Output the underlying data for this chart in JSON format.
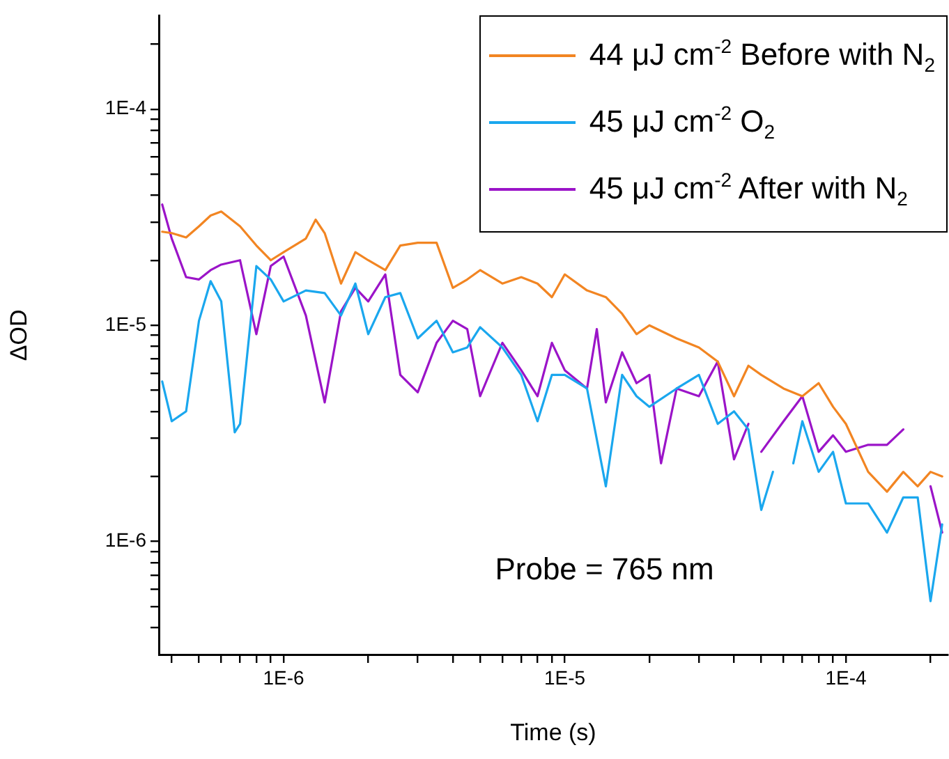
{
  "chart_data": {
    "type": "line",
    "xlabel": "Time (s)",
    "ylabel": "ΔOD",
    "log": "xy",
    "grid": false,
    "legend": "top right",
    "marker": "none",
    "line_style": "solid",
    "xlim": [
      3.6e-07,
      0.00023
    ],
    "ylim": [
      3e-07,
      0.00027
    ],
    "xticks": [
      {
        "value": 4e-07,
        "label": null
      },
      {
        "value": 5e-07,
        "label": null
      },
      {
        "value": 6e-07,
        "label": null
      },
      {
        "value": 7e-07,
        "label": null
      },
      {
        "value": 8e-07,
        "label": null
      },
      {
        "value": 9e-07,
        "label": null
      },
      {
        "value": 1e-06,
        "label": "1E-6"
      },
      {
        "value": 2e-06,
        "label": null
      },
      {
        "value": 3e-06,
        "label": null
      },
      {
        "value": 4e-06,
        "label": null
      },
      {
        "value": 5e-06,
        "label": null
      },
      {
        "value": 6e-06,
        "label": null
      },
      {
        "value": 7e-06,
        "label": null
      },
      {
        "value": 8e-06,
        "label": null
      },
      {
        "value": 9e-06,
        "label": null
      },
      {
        "value": 1e-05,
        "label": "1E-5"
      },
      {
        "value": 2e-05,
        "label": null
      },
      {
        "value": 3e-05,
        "label": null
      },
      {
        "value": 4e-05,
        "label": null
      },
      {
        "value": 5e-05,
        "label": null
      },
      {
        "value": 6e-05,
        "label": null
      },
      {
        "value": 7e-05,
        "label": null
      },
      {
        "value": 8e-05,
        "label": null
      },
      {
        "value": 9e-05,
        "label": null
      },
      {
        "value": 0.0001,
        "label": "1E-4"
      },
      {
        "value": 0.0002,
        "label": null
      }
    ],
    "yticks": [
      {
        "value": 4e-07,
        "label": null
      },
      {
        "value": 5e-07,
        "label": null
      },
      {
        "value": 6e-07,
        "label": null
      },
      {
        "value": 7e-07,
        "label": null
      },
      {
        "value": 8e-07,
        "label": null
      },
      {
        "value": 9e-07,
        "label": null
      },
      {
        "value": 1e-06,
        "label": "1E-6"
      },
      {
        "value": 2e-06,
        "label": null
      },
      {
        "value": 3e-06,
        "label": null
      },
      {
        "value": 4e-06,
        "label": null
      },
      {
        "value": 5e-06,
        "label": null
      },
      {
        "value": 6e-06,
        "label": null
      },
      {
        "value": 7e-06,
        "label": null
      },
      {
        "value": 8e-06,
        "label": null
      },
      {
        "value": 9e-06,
        "label": null
      },
      {
        "value": 1e-05,
        "label": "1E-5"
      },
      {
        "value": 2e-05,
        "label": null
      },
      {
        "value": 3e-05,
        "label": null
      },
      {
        "value": 4e-05,
        "label": null
      },
      {
        "value": 5e-05,
        "label": null
      },
      {
        "value": 6e-05,
        "label": null
      },
      {
        "value": 7e-05,
        "label": null
      },
      {
        "value": 8e-05,
        "label": null
      },
      {
        "value": 9e-05,
        "label": null
      },
      {
        "value": 0.0001,
        "label": "1E-4"
      },
      {
        "value": 0.0002,
        "label": null
      }
    ],
    "annotations": [
      "Probe = 765 nm"
    ],
    "series": [
      {
        "name": "44 μJ cm$^{-2}$ Before with N$_{2}$",
        "color": "#f28522",
        "x": [
          3.7e-07,
          4e-07,
          4.5e-07,
          5e-07,
          5.5e-07,
          6e-07,
          7e-07,
          8e-07,
          9e-07,
          1e-06,
          1.2e-06,
          1.3e-06,
          1.4e-06,
          1.6e-06,
          1.8e-06,
          2e-06,
          2.3e-06,
          2.6e-06,
          3e-06,
          3.5e-06,
          4e-06,
          4.5e-06,
          5e-06,
          6e-06,
          7e-06,
          8e-06,
          9e-06,
          1e-05,
          1.2e-05,
          1.4e-05,
          1.6e-05,
          1.8e-05,
          2e-05,
          2.5e-05,
          3e-05,
          3.5e-05,
          4e-05,
          4.5e-05,
          5e-05,
          6e-05,
          7e-05,
          8e-05,
          9e-05,
          0.0001,
          0.00012,
          0.00014,
          0.00016,
          0.00018,
          0.0002,
          0.00022
        ],
        "values": [
          2.71e-05,
          2.67e-05,
          2.55e-05,
          2.87e-05,
          3.22e-05,
          3.36e-05,
          2.87e-05,
          2.34e-05,
          2e-05,
          2.18e-05,
          2.52e-05,
          3.08e-05,
          2.67e-05,
          1.56e-05,
          2.18e-05,
          2e-05,
          1.8e-05,
          2.34e-05,
          2.41e-05,
          2.41e-05,
          1.49e-05,
          1.63e-05,
          1.8e-05,
          1.56e-05,
          1.67e-05,
          1.56e-05,
          1.35e-05,
          1.72e-05,
          1.45e-05,
          1.35e-05,
          1.13e-05,
          9.1e-06,
          1e-05,
          8.7e-06,
          7.9e-06,
          6.8e-06,
          4.7e-06,
          6.5e-06,
          5.9e-06,
          5.1e-06,
          4.7e-06,
          5.4e-06,
          4.2e-06,
          3.5e-06,
          2.1e-06,
          1.7e-06,
          2.1e-06,
          1.8e-06,
          2.1e-06,
          2e-06
        ]
      },
      {
        "name": "45 μJ cm$^{-2}$ O$_{2}$",
        "color": "#1aa7ee",
        "x": [
          3.7e-07,
          4e-07,
          4.5e-07,
          5e-07,
          5.5e-07,
          6e-07,
          6.7e-07,
          7e-07,
          8e-07,
          9e-07,
          1e-06,
          1.2e-06,
          1.4e-06,
          1.6e-06,
          1.8e-06,
          2e-06,
          2.3e-06,
          2.6e-06,
          3e-06,
          3.5e-06,
          4e-06,
          4.5e-06,
          5e-06,
          6e-06,
          7e-06,
          8e-06,
          9e-06,
          1e-05,
          1.2e-05,
          1.4e-05,
          1.6e-05,
          1.8e-05,
          2e-05,
          2.5e-05,
          3e-05,
          3.5e-05,
          4e-05,
          4.5e-05,
          5e-05,
          5.5e-05,
          6e-05,
          6.5e-05,
          7e-05,
          8e-05,
          9e-05,
          0.0001,
          0.00012,
          0.00014,
          0.00016,
          0.00018,
          0.0002,
          0.00022
        ],
        "values": [
          5.5e-06,
          3.6e-06,
          4e-06,
          1.05e-05,
          1.6e-05,
          1.29e-05,
          3.2e-06,
          3.5e-06,
          1.88e-05,
          1.63e-05,
          1.29e-05,
          1.45e-05,
          1.41e-05,
          1.11e-05,
          1.56e-05,
          9.1e-06,
          1.35e-05,
          1.41e-05,
          8.7e-06,
          1.05e-05,
          7.5e-06,
          7.9e-06,
          9.8e-06,
          7.9e-06,
          5.9e-06,
          3.6e-06,
          5.9e-06,
          5.9e-06,
          5.1e-06,
          1.8e-06,
          5.9e-06,
          4.7e-06,
          4.2e-06,
          5.1e-06,
          5.9e-06,
          3.5e-06,
          4e-06,
          3.3e-06,
          1.4e-06,
          2.1e-06,
          null,
          2.3e-06,
          3.6e-06,
          2.1e-06,
          2.6e-06,
          1.5e-06,
          1.5e-06,
          1.1e-06,
          1.6e-06,
          1.6e-06,
          5.3e-07,
          1.2e-06
        ]
      },
      {
        "name": "45 μJ cm$^{-2}$ After with N$_{2}$",
        "color": "#9b14c8",
        "x": [
          3.7e-07,
          4e-07,
          4.5e-07,
          5e-07,
          5.5e-07,
          6e-07,
          7e-07,
          8e-07,
          9e-07,
          1e-06,
          1.2e-06,
          1.4e-06,
          1.6e-06,
          1.8e-06,
          2e-06,
          2.3e-06,
          2.6e-06,
          3e-06,
          3.5e-06,
          4e-06,
          4.5e-06,
          5e-06,
          6e-06,
          7e-06,
          8e-06,
          9e-06,
          1e-05,
          1.2e-05,
          1.3e-05,
          1.4e-05,
          1.6e-05,
          1.8e-05,
          2e-05,
          2.2e-05,
          2.5e-05,
          3e-05,
          3.5e-05,
          4e-05,
          4.5e-05,
          4.7e-05,
          5e-05,
          6e-05,
          7e-05,
          8e-05,
          9e-05,
          0.0001,
          0.00012,
          0.00014,
          0.00016,
          0.00018,
          0.0002,
          0.00022
        ],
        "values": [
          3.62e-05,
          2.52e-05,
          1.67e-05,
          1.63e-05,
          1.8e-05,
          1.91e-05,
          2e-05,
          9.1e-06,
          1.88e-05,
          2.08e-05,
          1.11e-05,
          4.4e-06,
          1.16e-05,
          1.49e-05,
          1.29e-05,
          1.72e-05,
          5.9e-06,
          4.9e-06,
          8.3e-06,
          1.05e-05,
          9.6e-06,
          4.7e-06,
          8.3e-06,
          6.2e-06,
          4.7e-06,
          8.3e-06,
          6.2e-06,
          5.1e-06,
          9.6e-06,
          4.4e-06,
          7.5e-06,
          5.4e-06,
          5.9e-06,
          2.3e-06,
          5.1e-06,
          4.7e-06,
          6.8e-06,
          2.4e-06,
          3.5e-06,
          null,
          2.6e-06,
          3.6e-06,
          4.7e-06,
          2.6e-06,
          3.1e-06,
          2.6e-06,
          2.8e-06,
          2.8e-06,
          3.3e-06,
          null,
          1.8e-06,
          1.1e-06
        ]
      }
    ]
  }
}
